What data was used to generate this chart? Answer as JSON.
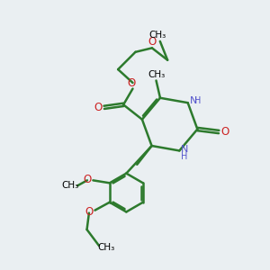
{
  "bg_color": "#eaeff2",
  "bond_color": "#2d7a2d",
  "n_color": "#5555cc",
  "o_color": "#cc2222",
  "bond_width": 1.8,
  "figsize": [
    3.0,
    3.0
  ],
  "dpi": 100,
  "xlim": [
    0,
    10
  ],
  "ylim": [
    0,
    10
  ]
}
